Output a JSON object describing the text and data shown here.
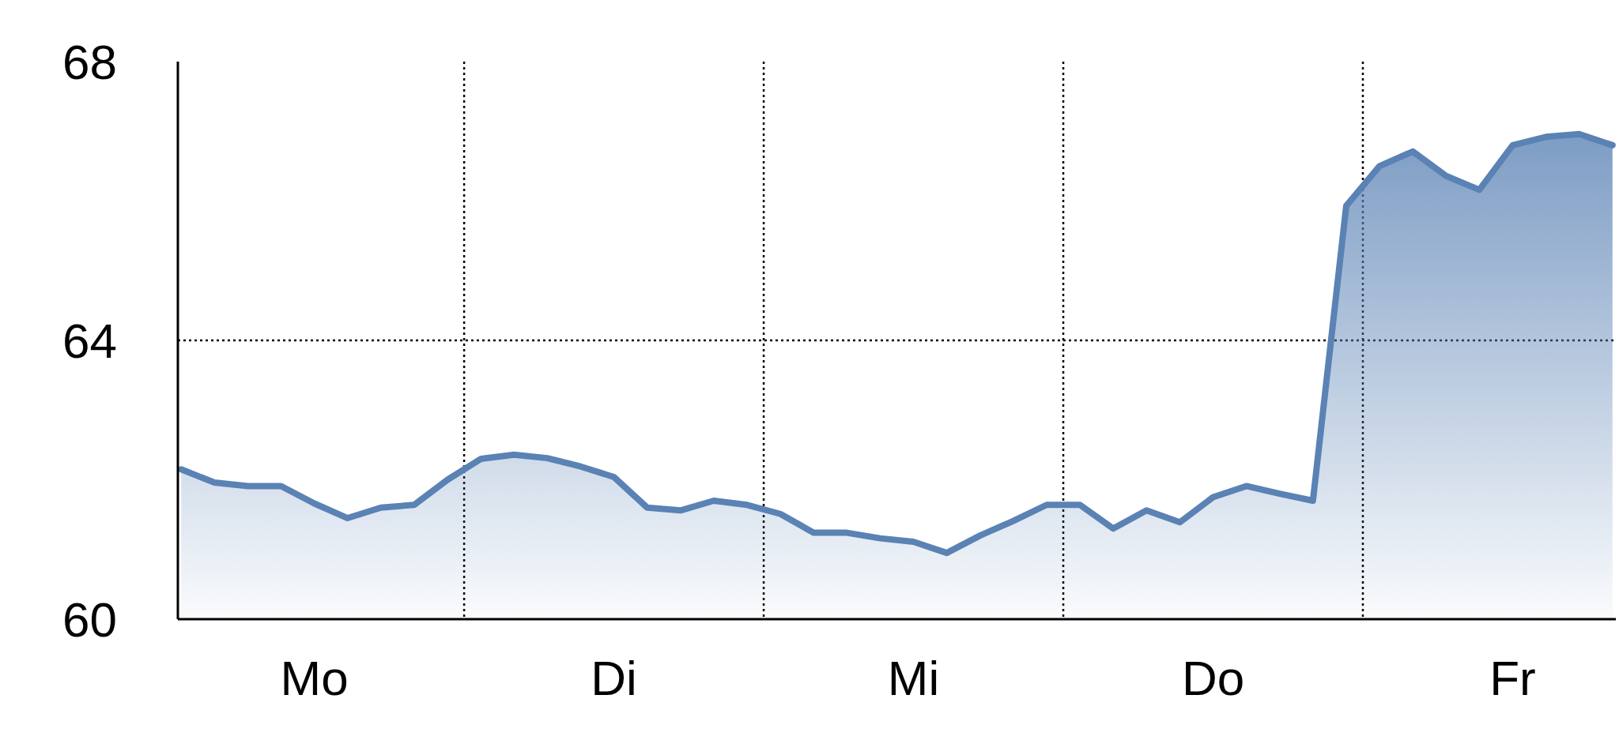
{
  "chart_data": {
    "type": "area",
    "grid": true,
    "ylim": [
      60,
      68
    ],
    "yticks": [
      60,
      64,
      68
    ],
    "categories": [
      null,
      null,
      null,
      null,
      "Mo",
      null,
      null,
      null,
      null,
      null,
      null,
      null,
      null,
      "Di",
      null,
      null,
      null,
      null,
      null,
      null,
      null,
      null,
      "Mi",
      null,
      null,
      null,
      null,
      null,
      null,
      null,
      null,
      "Do",
      null,
      null,
      null,
      null,
      null,
      null,
      null,
      null,
      "Fr",
      null,
      null,
      null
    ],
    "series": [
      {
        "color": "#5a82b4",
        "values": [
          62.15,
          61.96,
          61.91,
          61.91,
          61.66,
          61.45,
          61.6,
          61.64,
          62.0,
          62.3,
          62.36,
          62.31,
          62.19,
          62.04,
          61.6,
          61.56,
          61.7,
          61.64,
          61.51,
          61.24,
          61.24,
          61.16,
          61.11,
          60.95,
          61.2,
          61.41,
          61.64,
          61.64,
          61.3,
          61.56,
          61.39,
          61.75,
          61.91,
          61.8,
          61.7,
          65.93,
          66.5,
          66.71,
          66.36,
          66.16,
          66.8,
          66.92,
          66.96,
          66.8
        ]
      }
    ]
  }
}
